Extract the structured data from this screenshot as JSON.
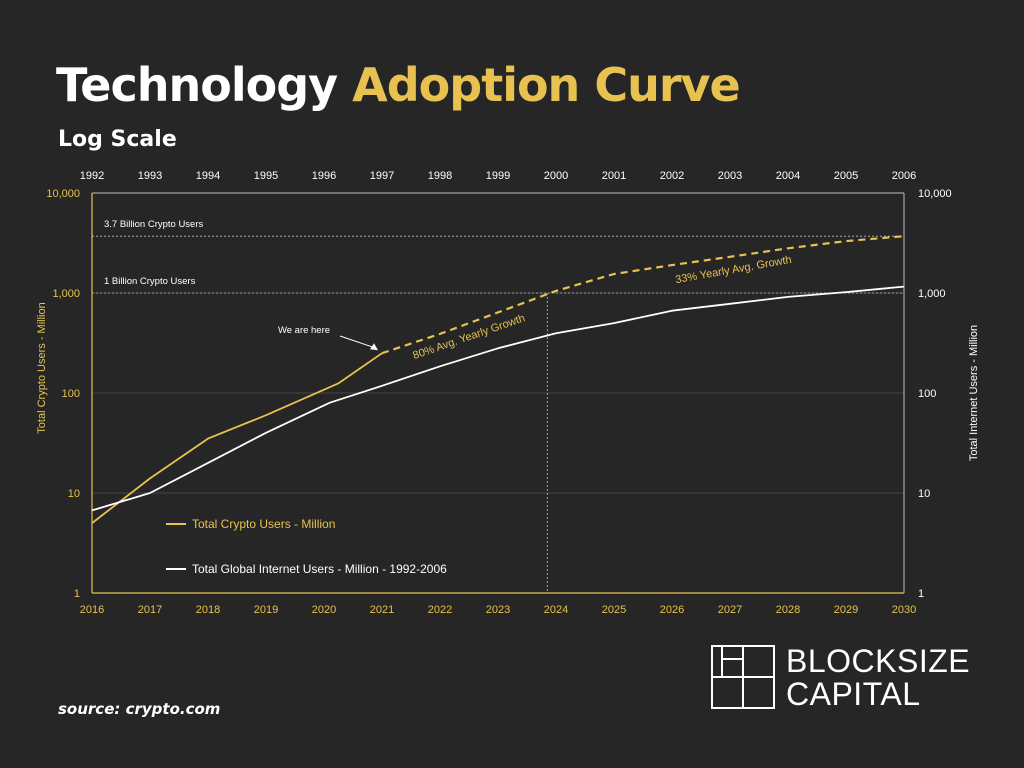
{
  "header": {
    "title_part1": "Technology",
    "title_part2": "Adoption Curve",
    "subtitle": "Log Scale"
  },
  "footer": {
    "source": "source: crypto.com"
  },
  "logo": {
    "line1": "BLOCKSIZE",
    "line2": "CAPITAL"
  },
  "colors": {
    "background": "#262626",
    "crypto": "#e7c251",
    "internet": "#ffffff",
    "grid": "#474747"
  },
  "chart_data": {
    "type": "line",
    "scale": "log",
    "ylim": [
      1,
      10000
    ],
    "bottom_axis": {
      "range": [
        2016,
        2030
      ],
      "ticks": [
        "2016",
        "2017",
        "2018",
        "2019",
        "2020",
        "2021",
        "2022",
        "2023",
        "2024",
        "2025",
        "2026",
        "2027",
        "2028",
        "2029",
        "2030"
      ]
    },
    "top_axis": {
      "range": [
        1992,
        2006
      ],
      "ticks": [
        "1992",
        "1993",
        "1994",
        "1995",
        "1996",
        "1997",
        "1998",
        "1999",
        "2000",
        "2001",
        "2002",
        "2003",
        "2004",
        "2005",
        "2006"
      ]
    },
    "left_ticks": [
      "10,000",
      "1,000",
      "100",
      "10",
      "1"
    ],
    "right_ticks": [
      "10,000",
      "1,000",
      "100",
      "10",
      "1"
    ],
    "ylabel_left": "Total Crypto Users - Million",
    "ylabel_right": "Total Internet Users - Million",
    "grid": "horizontal",
    "legend_position": "bottom-left",
    "series": [
      {
        "name": "Total Crypto Users - Million",
        "axis": "bottom",
        "style": "solid",
        "points": [
          [
            2016,
            5
          ],
          [
            2017,
            14
          ],
          [
            2018,
            35
          ],
          [
            2019,
            60
          ],
          [
            2020.25,
            125
          ],
          [
            2021,
            250
          ]
        ]
      },
      {
        "axis": "bottom",
        "style": "dashed",
        "points": [
          [
            2021,
            250
          ],
          [
            2022,
            390
          ],
          [
            2023,
            640
          ],
          [
            2024,
            1050
          ],
          [
            2025,
            1550
          ],
          [
            2026,
            1900
          ],
          [
            2027,
            2300
          ],
          [
            2028,
            2800
          ],
          [
            2029,
            3300
          ],
          [
            2030,
            3700
          ]
        ]
      },
      {
        "name": "Total Global Internet Users - Million - 1992-2006",
        "axis": "top",
        "style": "solid",
        "points": [
          [
            1992,
            6.7
          ],
          [
            1993,
            10
          ],
          [
            1994,
            20
          ],
          [
            1995,
            40
          ],
          [
            1996.1,
            80
          ],
          [
            1997,
            118
          ],
          [
            1998,
            185
          ],
          [
            1999,
            280
          ],
          [
            2000,
            395
          ],
          [
            2001,
            500
          ],
          [
            2002,
            665
          ],
          [
            2003,
            780
          ],
          [
            2004,
            915
          ],
          [
            2005,
            1020
          ],
          [
            2006,
            1160
          ]
        ]
      }
    ],
    "reference_lines": [
      {
        "value": 3700,
        "label": "3.7 Billion Crypto Users"
      },
      {
        "value": 1000,
        "label": "1 Billion Crypto Users"
      }
    ],
    "vertical_marker": {
      "x": 2023.85
    },
    "annotations": [
      {
        "text": "We are here",
        "x": 2021,
        "y": 250
      },
      {
        "text": "80% Avg. Yearly Growth"
      },
      {
        "text": "33% Yearly Avg. Growth"
      }
    ]
  }
}
